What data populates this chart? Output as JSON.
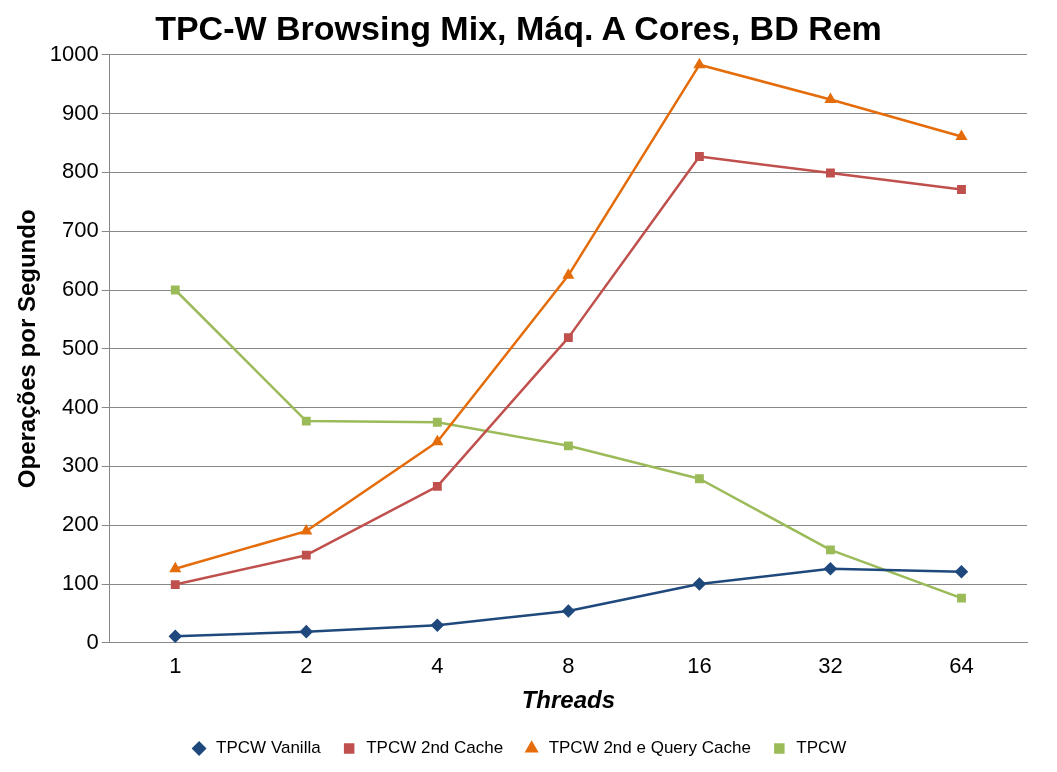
{
  "chart_data": {
    "type": "line",
    "title": "TPC-W Browsing Mix, Máq. A Cores, BD Rem",
    "xlabel": "Threads",
    "ylabel": "Operações por Segundo",
    "categories": [
      "1",
      "2",
      "4",
      "8",
      "16",
      "32",
      "64"
    ],
    "ylim": [
      0,
      1000
    ],
    "yticks": [
      0,
      100,
      200,
      300,
      400,
      500,
      600,
      700,
      800,
      900,
      1000
    ],
    "grid": "y",
    "legend": "bottom",
    "series": [
      {
        "name": "TPCW Vanilla",
        "color": "#1f497d",
        "marker": "diamond",
        "values": [
          11,
          19,
          30,
          54,
          100,
          126,
          121
        ]
      },
      {
        "name": "TPCW 2nd Cache",
        "color": "#c0504d",
        "marker": "square",
        "values": [
          99,
          149,
          266,
          519,
          827,
          799,
          771
        ]
      },
      {
        "name": "TPCW 2nd e Query Cache",
        "color": "#e46c0a",
        "marker": "triangle",
        "values": [
          126,
          190,
          342,
          625,
          983,
          924,
          861
        ]
      },
      {
        "name": "TPCW",
        "color": "#9bbb59",
        "marker": "square",
        "values": [
          600,
          377,
          375,
          335,
          279,
          158,
          76
        ]
      }
    ]
  }
}
